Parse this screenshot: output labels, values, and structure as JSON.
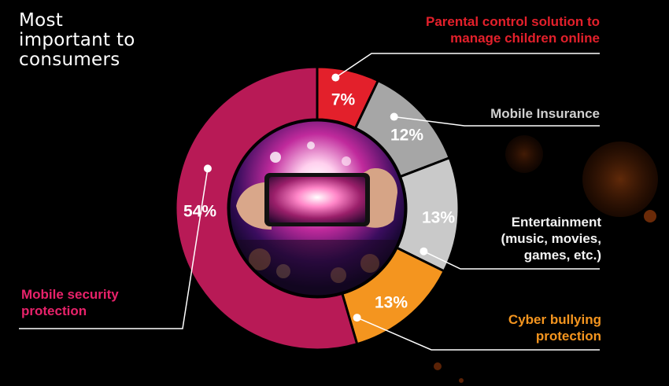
{
  "title_lines": [
    "Most",
    "important to",
    "consumers"
  ],
  "colors": {
    "background": "#000000",
    "parental": "#e3202b",
    "insurance": "#a6a6a6",
    "entertainment": "#c9c9c9",
    "cyber": "#f4951f",
    "security": "#b81a56",
    "leader": "#ffffff",
    "separator": "#000000"
  },
  "center_image": "concert-phone-photo",
  "chart_data": {
    "type": "pie",
    "style": "donut",
    "title": "",
    "slices": [
      {
        "key": "parental",
        "label_lines": [
          "Parental control solution to",
          "manage children online"
        ],
        "value": 7,
        "value_label": "7%",
        "color": "#e3202b",
        "label_color": "#e3202b"
      },
      {
        "key": "insurance",
        "label_lines": [
          "Mobile Insurance"
        ],
        "value": 12,
        "value_label": "12%",
        "color": "#a6a6a6",
        "label_color": "#d0d0d0"
      },
      {
        "key": "entertainment",
        "label_lines": [
          "Entertainment",
          "(music, movies,",
          "games, etc.)"
        ],
        "value": 13,
        "value_label": "13%",
        "color": "#c9c9c9",
        "label_color": "#f2f2f2"
      },
      {
        "key": "cyber",
        "label_lines": [
          "Cyber bullying",
          "protection"
        ],
        "value": 13,
        "value_label": "13%",
        "color": "#f4951f",
        "label_color": "#f4951f"
      },
      {
        "key": "security",
        "label_lines": [
          "Mobile security",
          "protection"
        ],
        "value": 54,
        "value_label": "54%",
        "color": "#b81a56",
        "label_color": "#e8226a"
      }
    ]
  }
}
